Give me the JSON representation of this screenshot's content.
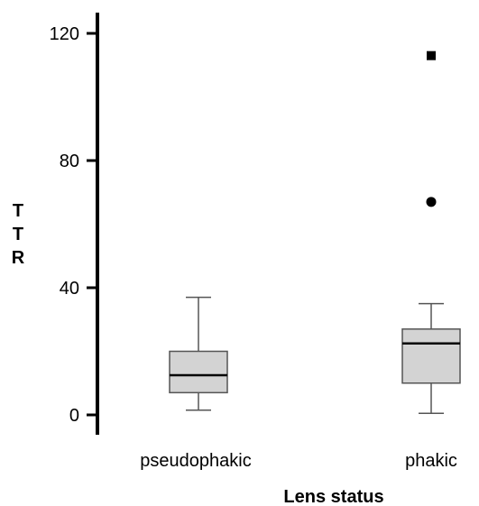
{
  "chart_data": {
    "type": "boxplot",
    "xlabel": "Lens status",
    "ylabel": "TTR",
    "ylim": [
      0,
      120
    ],
    "yticks": [
      0,
      40,
      80,
      120
    ],
    "categories": [
      "pseudophakic",
      "phakic"
    ],
    "boxes": [
      {
        "category": "pseudophakic",
        "whisker_low": 1.5,
        "q1": 7,
        "median": 12.5,
        "q3": 20,
        "whisker_high": 37,
        "outliers": [],
        "extremes": []
      },
      {
        "category": "phakic",
        "whisker_low": 0.5,
        "q1": 10,
        "median": 22.5,
        "q3": 27,
        "whisker_high": 35,
        "outliers": [
          67
        ],
        "extremes": [
          113
        ]
      }
    ],
    "colors": {
      "box_fill": "#d3d3d3",
      "stroke": "#000000",
      "whisker": "#555555"
    }
  }
}
